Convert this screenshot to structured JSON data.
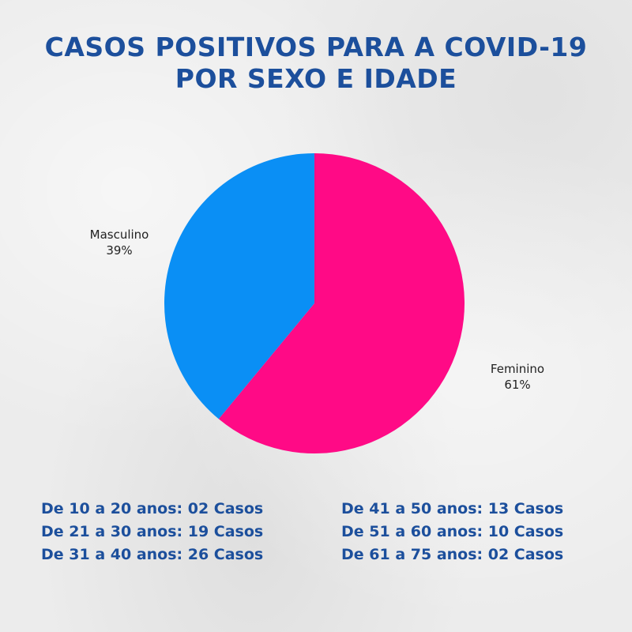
{
  "title": {
    "line1": "CASOS POSITIVOS PARA A COVID-19",
    "line2": "POR SEXO E IDADE"
  },
  "colors": {
    "title": "#1c4f9c",
    "masculino": "#0a8ff5",
    "feminino": "#ff0a86"
  },
  "chart_data": {
    "type": "pie",
    "slices": [
      {
        "label": "Masculino",
        "value": 39,
        "value_label": "39%",
        "color": "#0a8ff5"
      },
      {
        "label": "Feminino",
        "value": 61,
        "value_label": "61%",
        "color": "#ff0a86"
      }
    ]
  },
  "age_groups": {
    "left": [
      "De 10 a 20 anos: 02 Casos",
      "De 21 a 30 anos: 19 Casos",
      "De 31 a 40 anos: 26 Casos"
    ],
    "right": [
      "De 41 a 50 anos: 13 Casos",
      "De 51 a 60 anos: 10 Casos",
      "De 61 a 75 anos: 02 Casos"
    ]
  }
}
